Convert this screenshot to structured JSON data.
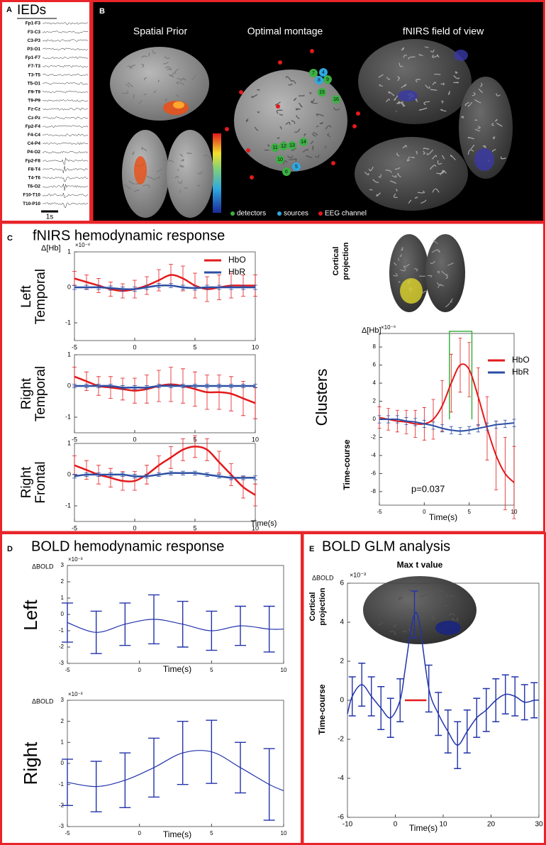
{
  "panels": {
    "A": {
      "label": "A",
      "title": "IEDs",
      "channels": [
        "Fp1-F3",
        "F3-C3",
        "C3-P3",
        "P3-O1",
        "Fp1-F7",
        "F7-T3",
        "T3-T5",
        "T5-O1",
        "F9-T9",
        "T9-P9",
        "Fz-Cz",
        "Cz-Pz",
        "Fp2-F4",
        "F4-C4",
        "C4-P4",
        "P4-O2",
        "Fp2-F8",
        "F8-T4",
        "T4-T6",
        "T6-O2",
        "F10-T10",
        "T10-P10"
      ],
      "scale_label": "1s"
    },
    "B": {
      "label": "B",
      "titles": [
        "Spatial Prior",
        "Optimal montage",
        "fNIRS field of view"
      ],
      "optode_labels": [
        "7",
        "4",
        "8",
        "9",
        "15",
        "16",
        "11",
        "12",
        "13",
        "14",
        "10",
        "6",
        "5"
      ],
      "legend": [
        {
          "name": "detectors",
          "color": "#3cb043"
        },
        {
          "name": "sources",
          "color": "#2fa8e0"
        },
        {
          "name": "EEG channel",
          "color": "#e31a1c"
        }
      ]
    },
    "C": {
      "label": "C",
      "title": "fNIRS hemodynamic response",
      "inset_label": [
        "Cortical",
        "projection"
      ]
    },
    "D": {
      "label": "D",
      "title": "BOLD hemodynamic response"
    },
    "E": {
      "label": "E",
      "title": "BOLD GLM analysis",
      "inset_title": "Max t value",
      "inset_label": [
        "Cortical",
        "projection"
      ]
    }
  },
  "chart_data": [
    {
      "type": "line",
      "row_label": [
        "Left",
        "Temporal"
      ],
      "y_label": "Δ[Hb]",
      "y_exponent": "×10⁻⁸",
      "legend": "upper right",
      "x": [
        -5,
        -4,
        -3,
        -2,
        -1,
        0,
        1,
        2,
        3,
        4,
        5,
        6,
        7,
        8,
        9,
        10
      ],
      "xlim": [
        -5,
        10
      ],
      "ylim": [
        -1.5,
        1
      ],
      "xticks": [
        -5,
        0,
        5,
        10
      ],
      "yticks": [
        1,
        0,
        -1
      ],
      "series": [
        {
          "name": "HbO",
          "color": "#e31a1c",
          "values": [
            0.25,
            0.15,
            0.05,
            -0.05,
            -0.1,
            -0.05,
            0.05,
            0.2,
            0.35,
            0.25,
            0.05,
            -0.05,
            0,
            0.05,
            0.05,
            0.05
          ],
          "errors": [
            0.2,
            0.2,
            0.2,
            0.2,
            0.2,
            0.25,
            0.25,
            0.3,
            0.3,
            0.35,
            0.35,
            0.35,
            0.35,
            0.35,
            0.3,
            0.3
          ]
        },
        {
          "name": "HbR",
          "color": "#2c4ea3",
          "values": [
            0,
            0,
            0,
            -0.02,
            -0.05,
            -0.05,
            0,
            0.05,
            0.05,
            0,
            -0.02,
            0,
            0,
            0,
            0,
            0
          ],
          "errors": [
            0.06,
            0.06,
            0.06,
            0.06,
            0.06,
            0.06,
            0.06,
            0.06,
            0.06,
            0.06,
            0.06,
            0.06,
            0.06,
            0.06,
            0.06,
            0.06
          ]
        }
      ]
    },
    {
      "type": "line",
      "row_label": [
        "Right",
        "Temporal"
      ],
      "x": [
        -5,
        -4,
        -3,
        -2,
        -1,
        0,
        1,
        2,
        3,
        4,
        5,
        6,
        7,
        8,
        9,
        10
      ],
      "xlim": [
        -5,
        10
      ],
      "ylim": [
        -1.5,
        1
      ],
      "xticks": [
        -5,
        0,
        5,
        10
      ],
      "yticks": [
        1,
        0,
        -1
      ],
      "series": [
        {
          "color": "#e31a1c",
          "values": [
            0.3,
            0.15,
            0,
            -0.05,
            -0.1,
            -0.15,
            -0.1,
            0,
            0.05,
            0,
            -0.1,
            -0.2,
            -0.2,
            -0.25,
            -0.4,
            -0.55
          ],
          "errors": [
            0.3,
            0.3,
            0.3,
            0.35,
            0.35,
            0.4,
            0.45,
            0.5,
            0.55,
            0.55,
            0.55,
            0.55,
            0.55,
            0.55,
            0.55,
            0.5
          ]
        },
        {
          "color": "#2c4ea3",
          "values": [
            0,
            0,
            0,
            0,
            -0.05,
            -0.05,
            -0.05,
            0,
            0,
            0,
            0,
            0,
            0,
            0,
            0,
            0
          ],
          "errors": [
            0.06,
            0.06,
            0.06,
            0.06,
            0.06,
            0.06,
            0.06,
            0.06,
            0.06,
            0.06,
            0.06,
            0.06,
            0.06,
            0.06,
            0.06,
            0.06
          ]
        }
      ]
    },
    {
      "type": "line",
      "row_label": [
        "Right",
        "Frontal"
      ],
      "x_label": "Time(s)",
      "x": [
        -5,
        -4,
        -3,
        -2,
        -1,
        0,
        1,
        2,
        3,
        4,
        5,
        6,
        7,
        8,
        9,
        10
      ],
      "xlim": [
        -5,
        10
      ],
      "ylim": [
        -1.5,
        1
      ],
      "xticks": [
        -5,
        0,
        5,
        10
      ],
      "yticks": [
        1,
        0,
        -1
      ],
      "series": [
        {
          "color": "#e31a1c",
          "values": [
            0.3,
            0.15,
            0,
            -0.1,
            -0.2,
            -0.2,
            0,
            0.3,
            0.55,
            0.8,
            0.9,
            0.8,
            0.4,
            0,
            -0.4,
            -0.65
          ],
          "errors": [
            0.3,
            0.3,
            0.3,
            0.3,
            0.3,
            0.3,
            0.3,
            0.3,
            0.35,
            0.35,
            0.35,
            0.35,
            0.35,
            0.35,
            0.35,
            0.35
          ]
        },
        {
          "color": "#2c4ea3",
          "values": [
            -0.05,
            0,
            0,
            0,
            0,
            -0.05,
            -0.05,
            0,
            0.05,
            0.05,
            0.05,
            0,
            -0.05,
            -0.1,
            -0.1,
            -0.1
          ],
          "errors": [
            0.06,
            0.06,
            0.06,
            0.06,
            0.06,
            0.06,
            0.06,
            0.06,
            0.06,
            0.06,
            0.06,
            0.06,
            0.06,
            0.06,
            0.06,
            0.06
          ]
        }
      ]
    },
    {
      "type": "line",
      "title": "Clusters",
      "side_label": "Time-course",
      "y_label": "Δ[Hb]",
      "y_exponent": "×10⁻⁹",
      "x_label": "Time(s)",
      "annotation": "p=0.037",
      "legend": "upper right",
      "significance_window": [
        2.8,
        5.3
      ],
      "significance_color": "#3cb043",
      "x": [
        -5,
        -4,
        -3,
        -2,
        -1,
        0,
        1,
        2,
        3,
        4,
        5,
        6,
        7,
        8,
        9,
        10
      ],
      "xlim": [
        -5,
        10
      ],
      "ylim": [
        -9.5,
        9.5
      ],
      "xticks": [
        -5,
        0,
        5,
        10
      ],
      "yticks": [
        8,
        6,
        4,
        2,
        0,
        -2,
        -4,
        -6,
        -8
      ],
      "series": [
        {
          "name": "HbO",
          "color": "#e31a1c",
          "values": [
            0.2,
            0,
            -0.2,
            -0.3,
            -0.5,
            -0.5,
            0,
            1.5,
            4,
            6,
            5.5,
            2.5,
            -1,
            -4,
            -6,
            -7
          ],
          "errors": [
            1.2,
            1.2,
            1.2,
            1.3,
            1.5,
            1.8,
            2.2,
            2.8,
            3.2,
            3,
            3,
            3.2,
            3.5,
            3.8,
            4,
            4
          ]
        },
        {
          "name": "HbR",
          "color": "#2c4ea3",
          "values": [
            0,
            0,
            0,
            -0.2,
            -0.3,
            -0.5,
            -0.7,
            -1,
            -1.2,
            -1.3,
            -1.2,
            -1,
            -0.8,
            -0.6,
            -0.5,
            -0.4
          ],
          "errors": [
            0.4,
            0.4,
            0.4,
            0.4,
            0.4,
            0.4,
            0.4,
            0.4,
            0.4,
            0.4,
            0.4,
            0.4,
            0.4,
            0.4,
            0.4,
            0.4
          ]
        }
      ]
    },
    {
      "type": "line",
      "row_label": [
        "Left"
      ],
      "y_label": "ΔBOLD",
      "y_exponent": "×10⁻³",
      "x_label": "Time(s)",
      "x": [
        -5,
        -3,
        -1,
        1,
        3,
        5,
        7,
        9,
        10
      ],
      "xlim": [
        -5,
        10
      ],
      "ylim": [
        -3,
        3
      ],
      "xticks": [
        -5,
        0,
        5,
        10
      ],
      "yticks": [
        3,
        2,
        1,
        0,
        -1,
        -2,
        -3
      ],
      "series": [
        {
          "color": "#2233aa",
          "values": [
            -0.5,
            -1.1,
            -0.6,
            -0.3,
            -0.6,
            -1.0,
            -0.7,
            -0.9,
            -0.9
          ],
          "errors": [
            1.2,
            1.3,
            1.3,
            1.5,
            1.4,
            1.2,
            1.2,
            1.4,
            null
          ]
        }
      ]
    },
    {
      "type": "line",
      "row_label": [
        "Right"
      ],
      "y_label": "ΔBOLD",
      "y_exponent": "×10⁻³",
      "x_label": "Time(s)",
      "x": [
        -5,
        -3,
        -1,
        1,
        3,
        5,
        7,
        9,
        10
      ],
      "xlim": [
        -5,
        10
      ],
      "ylim": [
        -3,
        3
      ],
      "xticks": [
        -5,
        0,
        5,
        10
      ],
      "yticks": [
        3,
        2,
        1,
        0,
        -1,
        -2,
        -3
      ],
      "series": [
        {
          "color": "#2233aa",
          "values": [
            -0.9,
            -1.1,
            -0.8,
            -0.2,
            0.5,
            0.55,
            -0.2,
            -1.0,
            -1.3
          ],
          "errors": [
            1.1,
            1.2,
            1.3,
            1.4,
            1.5,
            1.5,
            1.2,
            1.7,
            null
          ]
        }
      ]
    },
    {
      "type": "line",
      "side_label": "Time-course",
      "y_label": "ΔBOLD",
      "y_exponent": "×10⁻³",
      "x_label": "Time(s)",
      "significance_window": [
        2,
        6.5
      ],
      "significance_color": "#e31a1c",
      "x": [
        -10,
        -9,
        -7,
        -5,
        -3,
        -1,
        1,
        2,
        3,
        4,
        5,
        7,
        9,
        11,
        13,
        15,
        17,
        19,
        21,
        23,
        25,
        27,
        29,
        30
      ],
      "xlim": [
        -10,
        30
      ],
      "ylim": [
        -6,
        6
      ],
      "xticks": [
        -10,
        0,
        10,
        20,
        30
      ],
      "yticks": [
        6,
        4,
        2,
        0,
        -2,
        -4,
        -6
      ],
      "series": [
        {
          "color": "#2233aa",
          "values": [
            -0.7,
            0.2,
            0.8,
            0.2,
            -0.4,
            -0.9,
            0.0,
            1.5,
            3.2,
            4.4,
            4.0,
            0.6,
            -0.7,
            -1.6,
            -2.3,
            -1.6,
            -0.9,
            -0.5,
            0.0,
            0.3,
            0.2,
            -0.1,
            0.0,
            0.0
          ],
          "errors": [
            null,
            1.0,
            1.1,
            1.0,
            1.1,
            1.0,
            1.1,
            null,
            null,
            1.2,
            null,
            1.2,
            1.1,
            1.1,
            1.2,
            1.1,
            1.0,
            1.1,
            1.1,
            1.0,
            1.0,
            0.9,
            0.9,
            null
          ]
        }
      ]
    }
  ]
}
